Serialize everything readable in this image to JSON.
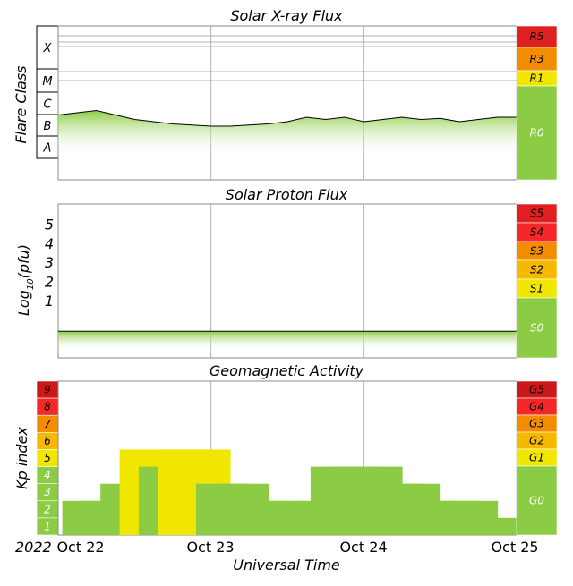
{
  "xray": {
    "title": "Solar X-ray Flux",
    "ylabel": "Flare Class",
    "classes": [
      "X",
      "M",
      "C",
      "B",
      "A"
    ],
    "scales": [
      {
        "label": "R5",
        "color": "#e02020"
      },
      {
        "label": "R3",
        "color": "#f28c00"
      },
      {
        "label": "R1",
        "color": "#f0e600"
      },
      {
        "label": "R0",
        "color": "#8ccc44"
      }
    ]
  },
  "proton": {
    "title": "Solar Proton Flux",
    "ylabel_main": "Log",
    "ylabel_sub": "10",
    "ylabel_tail": "(pfu)",
    "ticks": [
      "5",
      "4",
      "3",
      "2",
      "1"
    ],
    "scales": [
      {
        "label": "S5",
        "color": "#e02020"
      },
      {
        "label": "S4",
        "color": "#f42828"
      },
      {
        "label": "S3",
        "color": "#f28c00"
      },
      {
        "label": "S2",
        "color": "#f6b800"
      },
      {
        "label": "S1",
        "color": "#f0e600"
      },
      {
        "label": "S0",
        "color": "#8ccc44"
      }
    ]
  },
  "geomag": {
    "title": "Geomagnetic Activity",
    "ylabel": "Kp index",
    "scales": [
      {
        "label": "G5",
        "color": "#cc1818"
      },
      {
        "label": "G4",
        "color": "#f42828"
      },
      {
        "label": "G3",
        "color": "#f28c00"
      },
      {
        "label": "G2",
        "color": "#f6b800"
      },
      {
        "label": "G1",
        "color": "#f0e600"
      },
      {
        "label": "G0",
        "color": "#8ccc44"
      }
    ],
    "kp_levels": [
      {
        "label": "9",
        "color": "#cc1818"
      },
      {
        "label": "8",
        "color": "#f42828"
      },
      {
        "label": "7",
        "color": "#f28c00"
      },
      {
        "label": "6",
        "color": "#f6b800"
      },
      {
        "label": "5",
        "color": "#f0e600"
      },
      {
        "label": "4",
        "color": "#8ccc44"
      },
      {
        "label": "3",
        "color": "#8ccc44"
      },
      {
        "label": "2",
        "color": "#8ccc44"
      },
      {
        "label": "1",
        "color": "#8ccc44"
      }
    ]
  },
  "xaxis": {
    "label": "Universal Time",
    "year": "2022",
    "ticks": [
      "Oct 22",
      "Oct 23",
      "Oct 24",
      "Oct 25"
    ]
  },
  "chart_data": [
    {
      "type": "area",
      "title": "Solar X-ray Flux",
      "ylabel": "Flare Class",
      "log10_flux_scale": {
        "A": -8,
        "B": -7,
        "C": -6,
        "M": -5,
        "X": -4
      },
      "series": [
        {
          "x_hours": [
            0,
            3,
            6,
            9,
            12,
            15,
            18,
            21,
            24,
            27,
            30,
            33,
            36,
            39,
            42,
            45,
            48,
            51,
            54,
            57,
            60,
            63,
            66,
            69,
            72
          ],
          "log10_flux": [
            -6.5,
            -6.4,
            -6.3,
            -6.5,
            -6.7,
            -6.8,
            -6.9,
            -6.95,
            -7.0,
            -7.0,
            -6.95,
            -6.9,
            -6.8,
            -6.6,
            -6.7,
            -6.6,
            -6.8,
            -6.7,
            -6.6,
            -6.7,
            -6.65,
            -6.8,
            -6.7,
            -6.6,
            -6.6
          ]
        }
      ]
    },
    {
      "type": "area",
      "title": "Solar Proton Flux",
      "ylabel": "Log10(pfu)",
      "ylim": [
        -1.5,
        6
      ],
      "series": [
        {
          "x_hours": [
            0,
            12,
            24,
            36,
            48,
            60,
            72
          ],
          "log10_pfu": [
            -0.6,
            -0.6,
            -0.6,
            -0.6,
            -0.6,
            -0.6,
            -0.6
          ]
        }
      ]
    },
    {
      "type": "bar",
      "title": "Geomagnetic Activity",
      "ylabel": "Kp index",
      "ylim": [
        0,
        9
      ],
      "values": [
        2,
        2,
        3,
        5,
        4,
        5,
        5,
        3,
        3,
        2,
        2,
        1,
        2,
        4,
        4,
        4,
        3,
        3,
        2,
        2,
        2,
        1,
        1
      ]
    }
  ]
}
